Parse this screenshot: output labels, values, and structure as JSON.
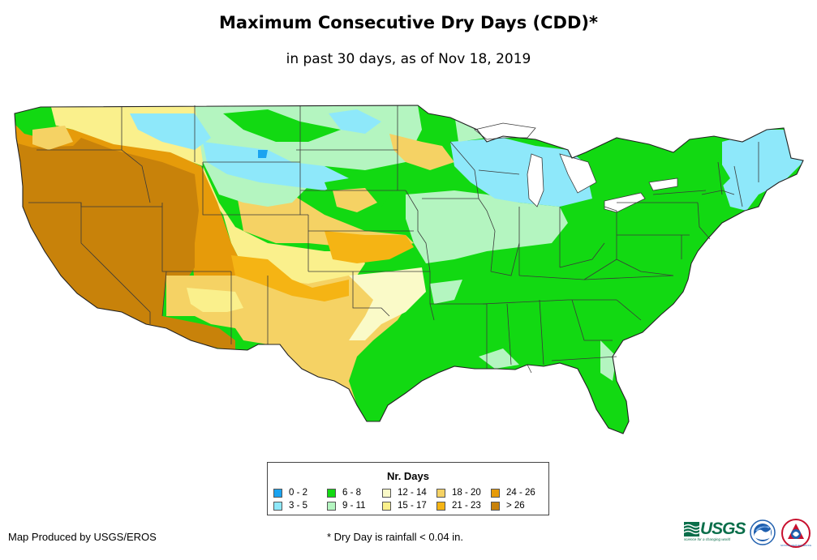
{
  "header": {
    "title": "Maximum Consecutive Dry Days (CDD)*",
    "subtitle": "in past 30 days, as of Nov 18, 2019"
  },
  "legend": {
    "title": "Nr. Days",
    "items": [
      {
        "label": "0 - 2",
        "color": "#1aa3f0"
      },
      {
        "label": "3 - 5",
        "color": "#8ee8fa"
      },
      {
        "label": "6 - 8",
        "color": "#12d912"
      },
      {
        "label": "9 - 11",
        "color": "#b4f5c0"
      },
      {
        "label": "12 - 14",
        "color": "#fafac8"
      },
      {
        "label": "15 - 17",
        "color": "#faf08c"
      },
      {
        "label": "18 - 20",
        "color": "#f5d264"
      },
      {
        "label": "21 - 23",
        "color": "#f5b414"
      },
      {
        "label": "24 - 26",
        "color": "#e69b0a"
      },
      {
        "label": "> 26",
        "color": "#c8820a"
      }
    ]
  },
  "footer": {
    "credit": "Map Produced by USGS/EROS",
    "footnote": "* Dry Day is rainfall < 0.04 in.",
    "logos": {
      "usgs": "USGS",
      "usgs_tagline": "science for a changing world",
      "noaa": "NOAA",
      "nws": "NATIONAL WEATHER SERVICE"
    }
  },
  "colors": {
    "border": "#3a3a3a",
    "usgs_green": "#0a6e4a",
    "noaa_blue": "#1f5fae"
  }
}
